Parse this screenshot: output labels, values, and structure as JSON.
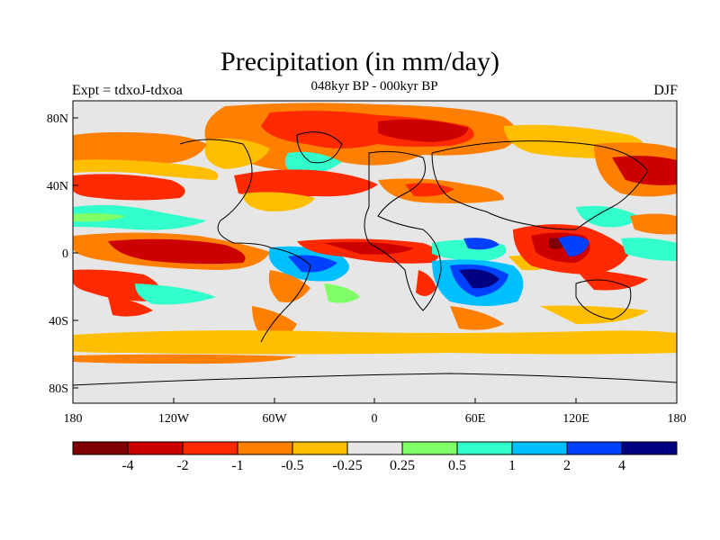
{
  "title": "Precipitation (in mm/day)",
  "subtitle": "048kyr BP - 000kyr BP",
  "left_label": "Expt = tdxoJ-tdxoa",
  "right_label": "DJF",
  "lat_ticks": [
    "80N",
    "40N",
    "0",
    "40S",
    "80S"
  ],
  "lon_ticks": [
    "180",
    "120W",
    "60W",
    "0",
    "60E",
    "120E",
    "180"
  ],
  "colorbar": {
    "colors": [
      "#7f0000",
      "#cc0000",
      "#ff2a00",
      "#ff7f00",
      "#ffbf00",
      "#e6e6e6",
      "#80ff66",
      "#33ffcc",
      "#00bfff",
      "#0040ff",
      "#000080"
    ],
    "labels": [
      "-4",
      "-2",
      "-1",
      "-0.5",
      "-0.25",
      "0.25",
      "0.5",
      "1",
      "2",
      "4"
    ]
  }
}
